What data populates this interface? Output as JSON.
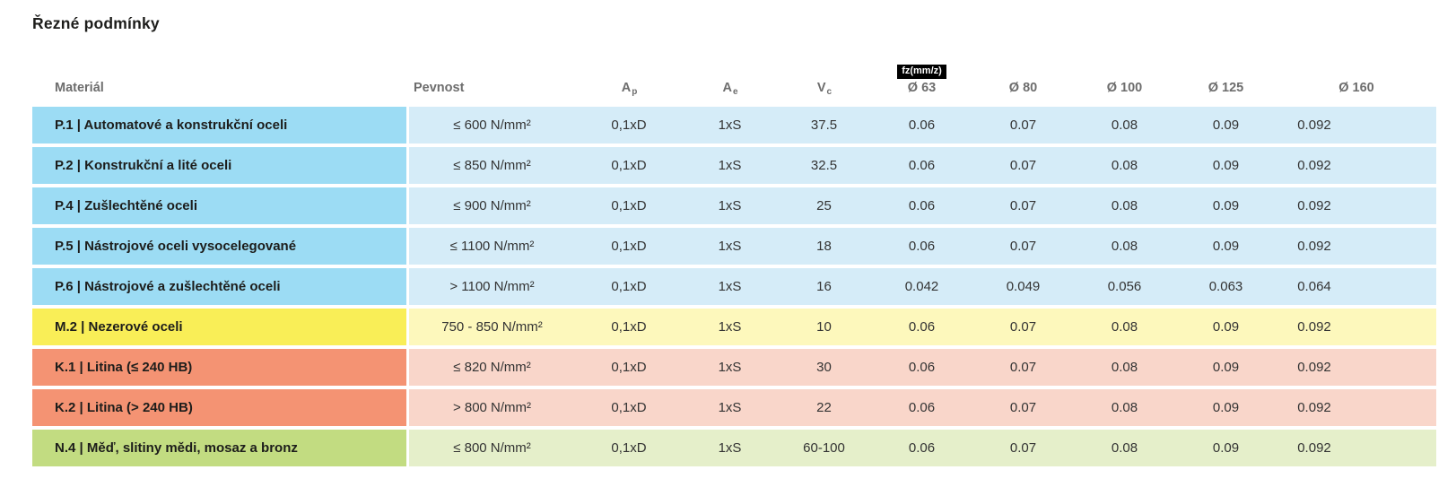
{
  "page": {
    "title": "Řezné podmínky"
  },
  "table": {
    "headers": {
      "material": "Materiál",
      "pevnost": "Pevnost",
      "ap_base": "A",
      "ap_sub": "p",
      "ae_base": "A",
      "ae_sub": "e",
      "vc_base": "V",
      "vc_sub": "c",
      "fz_badge": "fz(mm/z)",
      "diameters": [
        "Ø 63",
        "Ø 80",
        "Ø 100",
        "Ø 125",
        "Ø 160"
      ]
    },
    "colors": {
      "blue": {
        "strong": "#9cdcf4",
        "light": "#d5ecf8"
      },
      "yellow": {
        "strong": "#f9ee57",
        "light": "#fdf8bc"
      },
      "salmon": {
        "strong": "#f49373",
        "light": "#f9d6ca"
      },
      "green": {
        "strong": "#c2dc81",
        "light": "#e5efca"
      }
    },
    "rows": [
      {
        "material": "P.1 | Automatové a konstrukční oceli",
        "pevnost": "≤ 600 N/mm²",
        "ap": "0,1xD",
        "ae": "1xS",
        "vc": "37.5",
        "fz": [
          "0.06",
          "0.07",
          "0.08",
          "0.09",
          "0.092"
        ],
        "color": "blue"
      },
      {
        "material": "P.2 | Konstrukční a lité oceli",
        "pevnost": "≤ 850 N/mm²",
        "ap": "0,1xD",
        "ae": "1xS",
        "vc": "32.5",
        "fz": [
          "0.06",
          "0.07",
          "0.08",
          "0.09",
          "0.092"
        ],
        "color": "blue"
      },
      {
        "material": "P.4 | Zušlechtěné oceli",
        "pevnost": "≤ 900 N/mm²",
        "ap": "0,1xD",
        "ae": "1xS",
        "vc": "25",
        "fz": [
          "0.06",
          "0.07",
          "0.08",
          "0.09",
          "0.092"
        ],
        "color": "blue"
      },
      {
        "material": "P.5 | Nástrojové oceli vysocelegované",
        "pevnost": "≤ 1100 N/mm²",
        "ap": "0,1xD",
        "ae": "1xS",
        "vc": "18",
        "fz": [
          "0.06",
          "0.07",
          "0.08",
          "0.09",
          "0.092"
        ],
        "color": "blue"
      },
      {
        "material": "P.6 | Nástrojové a zušlechtěné oceli",
        "pevnost": "> 1100 N/mm²",
        "ap": "0,1xD",
        "ae": "1xS",
        "vc": "16",
        "fz": [
          "0.042",
          "0.049",
          "0.056",
          "0.063",
          "0.064"
        ],
        "color": "blue"
      },
      {
        "material": "M.2 | Nezerové oceli",
        "pevnost": "750 - 850 N/mm²",
        "ap": "0,1xD",
        "ae": "1xS",
        "vc": "10",
        "fz": [
          "0.06",
          "0.07",
          "0.08",
          "0.09",
          "0.092"
        ],
        "color": "yellow"
      },
      {
        "material": "K.1 | Litina (≤ 240 HB)",
        "pevnost": "≤ 820 N/mm²",
        "ap": "0,1xD",
        "ae": "1xS",
        "vc": "30",
        "fz": [
          "0.06",
          "0.07",
          "0.08",
          "0.09",
          "0.092"
        ],
        "color": "salmon"
      },
      {
        "material": "K.2 | Litina (> 240 HB)",
        "pevnost": "> 800 N/mm²",
        "ap": "0,1xD",
        "ae": "1xS",
        "vc": "22",
        "fz": [
          "0.06",
          "0.07",
          "0.08",
          "0.09",
          "0.092"
        ],
        "color": "salmon"
      },
      {
        "material": "N.4 | Měď, slitiny mědi, mosaz a bronz",
        "pevnost": "≤ 800 N/mm²",
        "ap": "0,1xD",
        "ae": "1xS",
        "vc": "60-100",
        "fz": [
          "0.06",
          "0.07",
          "0.08",
          "0.09",
          "0.092"
        ],
        "color": "green"
      }
    ]
  }
}
